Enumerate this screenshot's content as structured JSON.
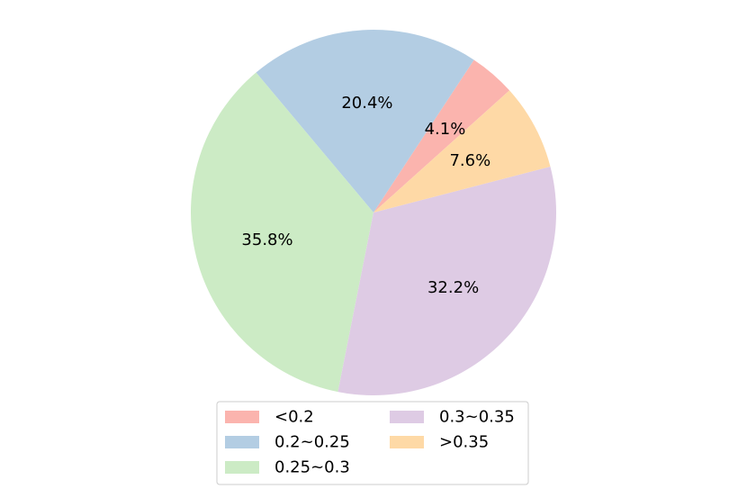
{
  "chart_data": {
    "type": "pie",
    "slices": [
      {
        "label": "<0.2",
        "value": 4.1,
        "display": "4.1%",
        "color": "#fbb4ae"
      },
      {
        "label": "0.2~0.25",
        "value": 20.4,
        "display": "20.4%",
        "color": "#b3cde3"
      },
      {
        "label": "0.25~0.3",
        "value": 35.8,
        "display": "35.8%",
        "color": "#ccebc5"
      },
      {
        "label": "0.3~0.35",
        "value": 32.2,
        "display": "32.2%",
        "color": "#decbe4"
      },
      {
        "label": ">0.35",
        "value": 7.6,
        "display": "7.6%",
        "color": "#fed9a6"
      }
    ],
    "legend": {
      "placement": "bottom-center",
      "columns": 2
    }
  }
}
